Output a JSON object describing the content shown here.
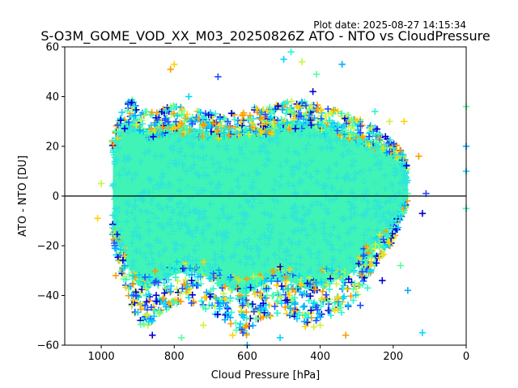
{
  "plot_date": "Plot date: 2025-08-27 14:15:34",
  "chart_data": {
    "type": "scatter",
    "title": "S-O3M_GOME_VOD_XX_M03_20250826Z ATO - NTO vs CloudPressure",
    "xlabel": "Cloud Pressure [hPa]",
    "ylabel": "ATO - NTO [DU]",
    "xlim": [
      1100,
      0
    ],
    "ylim": [
      -60,
      60
    ],
    "x_ticks": [
      1000,
      800,
      600,
      400,
      200,
      0
    ],
    "y_ticks": [
      -60,
      -40,
      -20,
      0,
      20,
      40,
      60
    ],
    "x_tick_labels": [
      "1000",
      "800",
      "600",
      "400",
      "200",
      "0"
    ],
    "y_tick_labels": [
      "−60",
      "−40",
      "−20",
      "0",
      "20",
      "40",
      "60"
    ],
    "reference_line_y": 0,
    "marker": "plus",
    "grid": false,
    "colors": {
      "core": "#40f3b6",
      "inner": "#2fe6d9",
      "edge": [
        "#00d4ff",
        "#2bf5d0",
        "#c8f53a",
        "#ffd200",
        "#ff9a00",
        "#1f4dff",
        "#0000cd",
        "#57ff9e",
        "#00aaff"
      ]
    },
    "series": [
      {
        "x": [
          968,
          955,
          940,
          930,
          915,
          900,
          880,
          860,
          840,
          820,
          800,
          780,
          760,
          740,
          720,
          700,
          680,
          660,
          640,
          620,
          600,
          580,
          560,
          540,
          520,
          500,
          480,
          460,
          440,
          420,
          400,
          380,
          360,
          340,
          320,
          300,
          280,
          260,
          240,
          220,
          200,
          190,
          180,
          170,
          160
        ],
        "y_high": [
          22,
          30,
          34,
          37,
          38,
          36,
          34,
          33,
          34,
          35,
          36,
          35,
          34,
          34,
          33,
          33,
          33,
          32,
          33,
          33,
          34,
          35,
          34,
          35,
          36,
          37,
          38,
          38,
          37,
          37,
          36,
          35,
          34,
          33,
          32,
          32,
          29,
          28,
          26,
          24,
          22,
          20,
          18,
          16,
          12
        ],
        "y_low": [
          -18,
          -26,
          -32,
          -38,
          -44,
          -50,
          -52,
          -50,
          -48,
          -46,
          -44,
          -43,
          -42,
          -43,
          -44,
          -46,
          -48,
          -50,
          -52,
          -54,
          -55,
          -52,
          -50,
          -48,
          -47,
          -46,
          -48,
          -50,
          -52,
          -52,
          -50,
          -48,
          -47,
          -46,
          -44,
          -40,
          -34,
          -30,
          -26,
          -22,
          -18,
          -14,
          -10,
          -6,
          -2
        ]
      }
    ],
    "sample_points": [
      {
        "x": 500,
        "y": 55
      },
      {
        "x": 480,
        "y": 58
      },
      {
        "x": 450,
        "y": 54
      },
      {
        "x": 800,
        "y": 53
      },
      {
        "x": 810,
        "y": 51
      },
      {
        "x": 680,
        "y": 48
      },
      {
        "x": 420,
        "y": 42
      },
      {
        "x": 410,
        "y": 49
      },
      {
        "x": 340,
        "y": 53
      },
      {
        "x": 760,
        "y": 40
      },
      {
        "x": 250,
        "y": 34
      },
      {
        "x": 210,
        "y": 30
      },
      {
        "x": 170,
        "y": 30
      },
      {
        "x": 130,
        "y": 16
      },
      {
        "x": 110,
        "y": 1
      },
      {
        "x": 120,
        "y": -7
      },
      {
        "x": 0,
        "y": 36
      },
      {
        "x": 0,
        "y": 20
      },
      {
        "x": 0,
        "y": 10
      },
      {
        "x": 0,
        "y": -5
      },
      {
        "x": 1000,
        "y": 5
      },
      {
        "x": 1010,
        "y": -9
      },
      {
        "x": 960,
        "y": -32
      },
      {
        "x": 880,
        "y": -44
      },
      {
        "x": 860,
        "y": -56
      },
      {
        "x": 780,
        "y": -57
      },
      {
        "x": 600,
        "y": -60
      },
      {
        "x": 510,
        "y": -57
      },
      {
        "x": 440,
        "y": -48
      },
      {
        "x": 400,
        "y": -52
      },
      {
        "x": 360,
        "y": -46
      },
      {
        "x": 330,
        "y": -56
      },
      {
        "x": 290,
        "y": -44
      },
      {
        "x": 230,
        "y": -34
      },
      {
        "x": 180,
        "y": -28
      },
      {
        "x": 160,
        "y": -38
      },
      {
        "x": 120,
        "y": -55
      },
      {
        "x": 270,
        "y": -37
      },
      {
        "x": 720,
        "y": -52
      },
      {
        "x": 640,
        "y": -56
      }
    ]
  }
}
